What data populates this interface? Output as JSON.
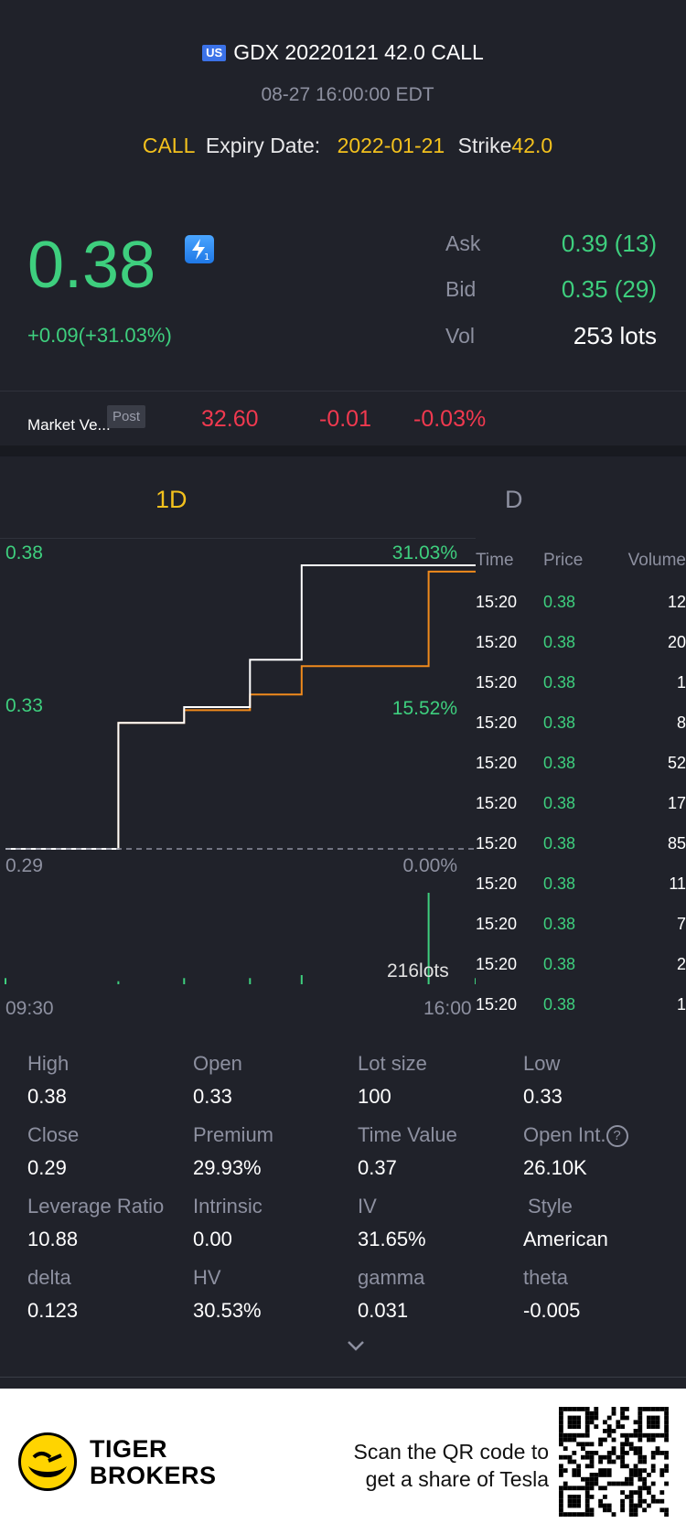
{
  "header": {
    "market_badge": "US",
    "title": "GDX 20220121 42.0 CALL",
    "timestamp": "08-27 16:00:00 EDT",
    "type": "CALL",
    "expiry_label": "Expiry Date:",
    "expiry_value": "2022-01-21",
    "strike_label": "Strike",
    "strike_value": "42.0"
  },
  "quote": {
    "price": "0.38",
    "change": "+0.09(+31.03%)",
    "ask_label": "Ask",
    "ask_value": "0.39 (13)",
    "bid_label": "Bid",
    "bid_value": "0.35 (29)",
    "vol_label": "Vol",
    "vol_value": "253 lots"
  },
  "market": {
    "label": "Market Ve...",
    "session": "Post",
    "price": "32.60",
    "change": "-0.01",
    "change_pct": "-0.03%"
  },
  "tabs": [
    "1D",
    "D"
  ],
  "chart": {
    "y_high": "0.38",
    "y_mid": "0.33",
    "y_low": "0.29",
    "pct_high": "31.03%",
    "pct_mid": "15.52%",
    "pct_low": "0.00%",
    "volume_label": "216lots",
    "x_start": "09:30",
    "x_end": "16:00"
  },
  "chart_data": {
    "type": "line",
    "x_range": [
      "09:30",
      "16:00"
    ],
    "ylim": [
      0.29,
      0.38
    ],
    "series": [
      {
        "name": "",
        "color": "#ffffff",
        "points": [
          [
            0,
            0.29
          ],
          [
            0.24,
            0.29
          ],
          [
            0.24,
            0.33
          ],
          [
            0.38,
            0.33
          ],
          [
            0.38,
            0.335
          ],
          [
            0.52,
            0.335
          ],
          [
            0.52,
            0.35
          ],
          [
            0.63,
            0.35
          ],
          [
            0.63,
            0.38
          ],
          [
            1.0,
            0.38
          ]
        ]
      },
      {
        "name": "",
        "color": "#f08a1c",
        "points": [
          [
            0,
            0.29
          ],
          [
            0.24,
            0.29
          ],
          [
            0.24,
            0.33
          ],
          [
            0.38,
            0.33
          ],
          [
            0.38,
            0.334
          ],
          [
            0.52,
            0.334
          ],
          [
            0.52,
            0.339
          ],
          [
            0.63,
            0.339
          ],
          [
            0.63,
            0.348
          ],
          [
            0.9,
            0.348
          ],
          [
            0.9,
            0.378
          ],
          [
            1.0,
            0.378
          ]
        ]
      }
    ],
    "volume_bars": [
      [
        0.0,
        2
      ],
      [
        0.24,
        1
      ],
      [
        0.38,
        2
      ],
      [
        0.52,
        2
      ],
      [
        0.63,
        3
      ],
      [
        0.9,
        30
      ],
      [
        1.0,
        2
      ]
    ]
  },
  "trades": {
    "headers": [
      "Time",
      "Price",
      "Volume"
    ],
    "rows": [
      [
        "15:20",
        "0.38",
        "12"
      ],
      [
        "15:20",
        "0.38",
        "20"
      ],
      [
        "15:20",
        "0.38",
        "1"
      ],
      [
        "15:20",
        "0.38",
        "8"
      ],
      [
        "15:20",
        "0.38",
        "52"
      ],
      [
        "15:20",
        "0.38",
        "17"
      ],
      [
        "15:20",
        "0.38",
        "85"
      ],
      [
        "15:20",
        "0.38",
        "11"
      ],
      [
        "15:20",
        "0.38",
        "7"
      ],
      [
        "15:20",
        "0.38",
        "2"
      ],
      [
        "15:20",
        "0.38",
        "1"
      ]
    ]
  },
  "stats": [
    {
      "label": "High",
      "value": "0.38"
    },
    {
      "label": "Open",
      "value": "0.33"
    },
    {
      "label": "Lot size",
      "value": "100"
    },
    {
      "label": "Low",
      "value": "0.33"
    },
    {
      "label": "Close",
      "value": "0.29"
    },
    {
      "label": "Premium",
      "value": "29.93%"
    },
    {
      "label": "Time Value",
      "value": "0.37"
    },
    {
      "label": "Open Int.",
      "value": "26.10K"
    },
    {
      "label": "Leverage Ratio",
      "value": "10.88"
    },
    {
      "label": "Intrinsic",
      "value": "0.00"
    },
    {
      "label": "IV",
      "value": "31.65%"
    },
    {
      "label": "Style",
      "value": "American"
    },
    {
      "label": "delta",
      "value": "0.123"
    },
    {
      "label": "HV",
      "value": "30.53%"
    },
    {
      "label": "gamma",
      "value": "0.031"
    },
    {
      "label": "theta",
      "value": "-0.005"
    }
  ],
  "footer": {
    "brand_line1": "TIGER",
    "brand_line2": "BROKERS",
    "scan_line1": "Scan the QR code to",
    "scan_line2": "get a share of Tesla"
  },
  "colors": {
    "background": "#20222a",
    "up_green": "#3ecf7e",
    "down_red": "#f0394f",
    "accent_yellow": "#f3c11d",
    "avg_line_orange": "#f08a1c"
  }
}
